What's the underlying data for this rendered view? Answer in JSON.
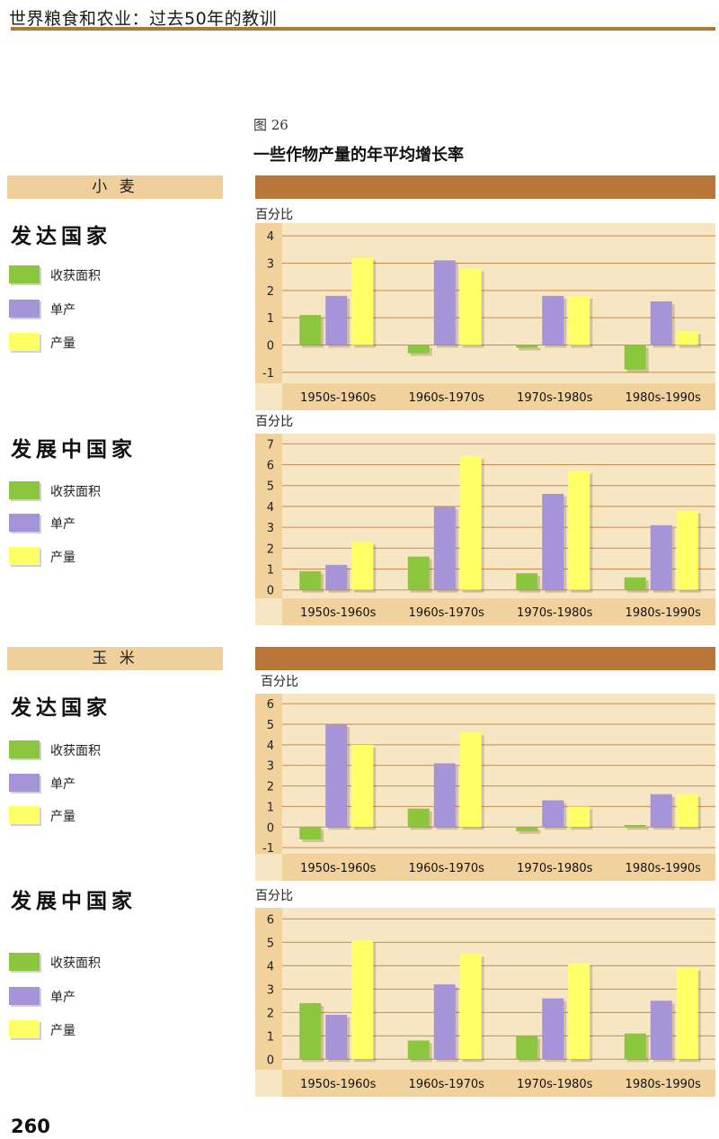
{
  "header": {
    "title": "世界粮食和农业：过去50年的教训"
  },
  "figure": {
    "number": "图 26",
    "title": "一些作物产量的年平均增长率"
  },
  "colors": {
    "area": "#8cc63f",
    "yield": "#a694d8",
    "production": "#ffff66",
    "chart_background": "#f7e6c4",
    "axis_band": "#f2d29c",
    "crop_bar": "#b9773a",
    "header_rule": "#b07a2e"
  },
  "legend": {
    "area": "收获面积",
    "yield": "单产",
    "production": "产量"
  },
  "unit": "百分比",
  "page_number": "260",
  "crops": [
    {
      "label": "小 麦"
    },
    {
      "label": "玉 米"
    }
  ],
  "groups": [
    {
      "title": "发达国家"
    },
    {
      "title": "发展中国家"
    },
    {
      "title": "发达国家"
    },
    {
      "title": "发展中国家"
    }
  ],
  "chart_data": [
    {
      "type": "bar",
      "crop": "小麦",
      "group": "发达国家",
      "ylabel": "百分比",
      "categories": [
        "1950s-1960s",
        "1960s-1970s",
        "1970s-1980s",
        "1980s-1990s"
      ],
      "ylim": [
        -1.4,
        4.4
      ],
      "yticks": [
        -1,
        0,
        1,
        2,
        3,
        4
      ],
      "grid": true,
      "series": [
        {
          "name": "收获面积",
          "values": [
            1.1,
            -0.3,
            -0.1,
            -0.9
          ]
        },
        {
          "name": "单产",
          "values": [
            1.8,
            3.1,
            1.8,
            1.6
          ]
        },
        {
          "name": "产量",
          "values": [
            3.2,
            2.8,
            1.8,
            0.5
          ]
        }
      ]
    },
    {
      "type": "bar",
      "crop": "小麦",
      "group": "发展中国家",
      "ylabel": "百分比",
      "categories": [
        "1950s-1960s",
        "1960s-1970s",
        "1970s-1980s",
        "1980s-1990s"
      ],
      "ylim": [
        -0.4,
        7.4
      ],
      "yticks": [
        0,
        1,
        2,
        3,
        4,
        5,
        6,
        7
      ],
      "grid": true,
      "series": [
        {
          "name": "收获面积",
          "values": [
            0.9,
            1.6,
            0.8,
            0.6
          ]
        },
        {
          "name": "单产",
          "values": [
            1.2,
            4.0,
            4.6,
            3.1
          ]
        },
        {
          "name": "产量",
          "values": [
            2.3,
            6.4,
            5.7,
            3.8
          ]
        }
      ]
    },
    {
      "type": "bar",
      "crop": "玉米",
      "group": "发达国家",
      "ylabel": "百分比",
      "categories": [
        "1950s-1960s",
        "1960s-1970s",
        "1970s-1980s",
        "1980s-1990s"
      ],
      "ylim": [
        -1.3,
        6.4
      ],
      "yticks": [
        -1,
        0,
        1,
        2,
        3,
        4,
        5,
        6
      ],
      "grid": true,
      "series": [
        {
          "name": "收获面积",
          "values": [
            -0.6,
            0.9,
            -0.2,
            0.1
          ]
        },
        {
          "name": "单产",
          "values": [
            5.0,
            3.1,
            1.3,
            1.6
          ]
        },
        {
          "name": "产量",
          "values": [
            4.0,
            4.6,
            1.0,
            1.6
          ]
        }
      ]
    },
    {
      "type": "bar",
      "crop": "玉米",
      "group": "发展中国家",
      "ylabel": "百分比",
      "categories": [
        "1950s-1960s",
        "1960s-1970s",
        "1970s-1980s",
        "1980s-1990s"
      ],
      "ylim": [
        -0.45,
        6.4
      ],
      "yticks": [
        0,
        1,
        2,
        3,
        4,
        5,
        6
      ],
      "grid": true,
      "series": [
        {
          "name": "收获面积",
          "values": [
            2.4,
            0.8,
            1.0,
            1.1
          ]
        },
        {
          "name": "单产",
          "values": [
            1.9,
            3.2,
            2.6,
            2.5
          ]
        },
        {
          "name": "产量",
          "values": [
            5.1,
            4.5,
            4.1,
            3.9
          ]
        }
      ]
    }
  ]
}
